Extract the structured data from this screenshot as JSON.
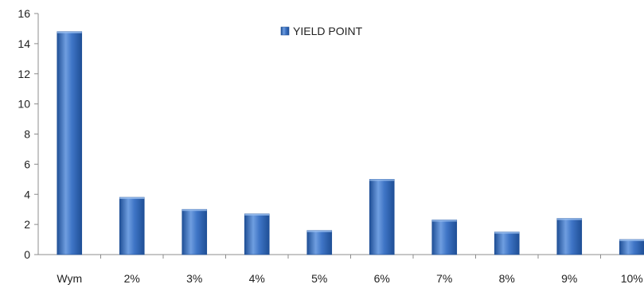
{
  "chart_data": {
    "type": "bar",
    "title": "",
    "xlabel": "",
    "ylabel": "",
    "categories": [
      "Wym",
      "2%",
      "3%",
      "4%",
      "5%",
      "6%",
      "7%",
      "8%",
      "9%",
      "10%"
    ],
    "series": [
      {
        "name": "YIELD POINT",
        "values": [
          14.8,
          3.8,
          3.0,
          2.7,
          1.6,
          5.0,
          2.3,
          1.5,
          2.4,
          1.0
        ]
      }
    ],
    "ylim": [
      0,
      16
    ],
    "yticks": [
      0,
      2,
      4,
      6,
      8,
      10,
      12,
      14,
      16
    ],
    "grid": false,
    "legend_position": "top-center",
    "colors": {
      "bar_light": "#6f9ee0",
      "bar_mid": "#3f75c6",
      "bar_dark": "#1f4f96",
      "axis": "#8c8c8c"
    }
  }
}
